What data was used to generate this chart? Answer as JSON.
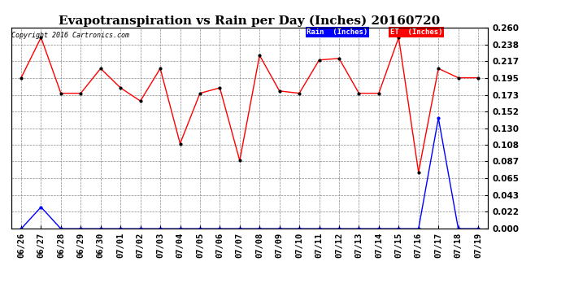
{
  "title": "Evapotranspiration vs Rain per Day (Inches) 20160720",
  "copyright": "Copyright 2016 Cartronics.com",
  "dates": [
    "06/26",
    "06/27",
    "06/28",
    "06/29",
    "06/30",
    "07/01",
    "07/02",
    "07/03",
    "07/04",
    "07/05",
    "07/06",
    "07/07",
    "07/08",
    "07/09",
    "07/10",
    "07/11",
    "07/12",
    "07/13",
    "07/14",
    "07/15",
    "07/16",
    "07/17",
    "07/18",
    "07/19"
  ],
  "rain": [
    0.0,
    0.028,
    0.0,
    0.0,
    0.0,
    0.0,
    0.0,
    0.0,
    0.0,
    0.0,
    0.0,
    0.0,
    0.0,
    0.0,
    0.0,
    0.0,
    0.0,
    0.0,
    0.0,
    0.0,
    0.0,
    0.143,
    0.0,
    0.0
  ],
  "et": [
    0.195,
    0.247,
    0.175,
    0.175,
    0.207,
    0.182,
    0.165,
    0.207,
    0.11,
    0.175,
    0.182,
    0.088,
    0.224,
    0.178,
    0.175,
    0.218,
    0.22,
    0.175,
    0.175,
    0.247,
    0.073,
    0.207,
    0.195,
    0.195
  ],
  "ylim": [
    0.0,
    0.26
  ],
  "yticks": [
    0.0,
    0.022,
    0.043,
    0.065,
    0.087,
    0.108,
    0.13,
    0.152,
    0.173,
    0.195,
    0.217,
    0.238,
    0.26
  ],
  "rain_color": "#0000FF",
  "et_color": "#FF0000",
  "background_color": "#FFFFFF",
  "grid_color": "#888888",
  "title_fontsize": 11,
  "tick_fontsize": 7.5,
  "copyright_fontsize": 6,
  "legend_rain_bg": "#0000FF",
  "legend_et_bg": "#FF0000",
  "legend_rain_label": "Rain  (Inches)",
  "legend_et_label": "ET  (Inches)"
}
